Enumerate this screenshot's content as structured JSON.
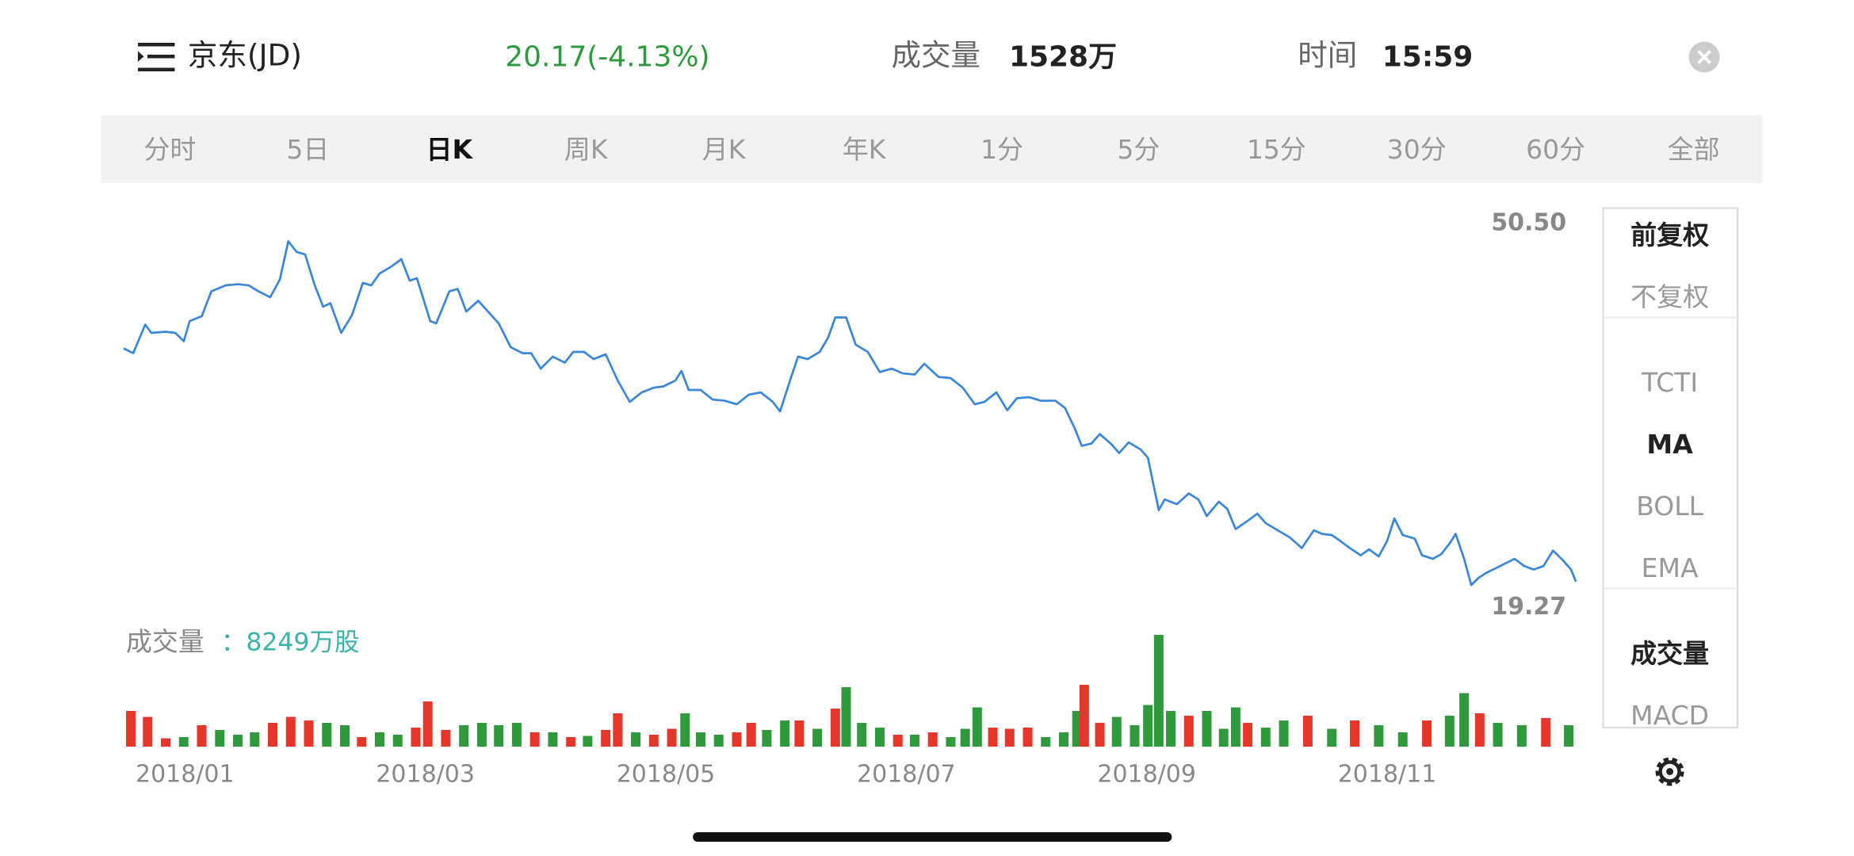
{
  "header": {
    "name": "京东(JD)",
    "price": "20.17(-4.13%)",
    "volume_label": "成交量",
    "volume": "1528万",
    "time_label": "时间",
    "time": "15:59"
  },
  "tabs": {
    "items": [
      "分时",
      "5日",
      "日K",
      "周K",
      "月K",
      "年K",
      "1分",
      "5分",
      "15分",
      "30分",
      "60分",
      "全部"
    ],
    "selected": 2
  },
  "side_panel": {
    "groups": [
      [
        "前复权",
        "不复权"
      ],
      [
        "TCTI",
        "MA",
        "BOLL",
        "EMA"
      ],
      [
        "成交量",
        "MACD"
      ]
    ],
    "selected": [
      "前复权",
      "MA",
      "成交量"
    ]
  },
  "chart_data": {
    "type": "line",
    "color": "#3a86d9",
    "x": [
      0.49,
      0.57,
      0.67,
      0.72,
      0.84,
      0.92,
      0.99,
      1.04,
      1.14,
      1.22,
      1.34,
      1.44,
      1.53,
      1.61,
      1.71,
      1.79,
      1.86,
      1.93,
      2.0,
      2.08,
      2.15,
      2.21,
      2.3,
      2.39,
      2.48,
      2.55,
      2.62,
      2.72,
      2.8,
      2.87,
      2.93,
      3.04,
      3.09,
      3.2,
      3.27,
      3.34,
      3.44,
      3.53,
      3.61,
      3.71,
      3.81,
      3.88,
      3.96,
      4.06,
      4.16,
      4.23,
      4.32,
      4.4,
      4.5,
      4.6,
      4.7,
      4.8,
      4.9,
      4.98,
      5.08,
      5.13,
      5.19,
      5.29,
      5.39,
      5.49,
      5.59,
      5.69,
      5.79,
      5.89,
      5.95,
      6.04,
      6.1,
      6.18,
      6.28,
      6.35,
      6.41,
      6.5,
      6.58,
      6.68,
      6.78,
      6.88,
      6.97,
      7.07,
      7.15,
      7.27,
      7.37,
      7.47,
      7.57,
      7.65,
      7.75,
      7.84,
      7.92,
      8.02,
      8.12,
      8.24,
      8.32,
      8.4,
      8.46,
      8.54,
      8.61,
      8.71,
      8.77,
      8.85,
      8.95,
      9.01,
      9.1,
      9.15,
      9.25,
      9.35,
      9.43,
      9.5,
      9.6,
      9.67,
      9.74,
      9.84,
      9.92,
      9.99,
      10.09,
      10.19,
      10.29,
      10.39,
      10.46,
      10.54,
      10.61,
      10.69,
      10.78,
      10.85,
      10.93,
      11.0,
      11.06,
      11.13,
      11.23,
      11.29,
      11.38,
      11.45,
      11.52,
      11.57,
      11.64,
      11.7,
      11.76,
      11.82,
      11.9,
      11.98,
      12.06,
      12.14,
      12.22,
      12.3,
      12.38,
      12.46,
      12.53,
      12.57
    ],
    "values": [
      40.4,
      39.98,
      42.46,
      41.74,
      41.84,
      41.74,
      41.02,
      42.77,
      43.18,
      45.35,
      45.86,
      45.96,
      45.86,
      45.35,
      44.83,
      46.38,
      49.68,
      48.75,
      48.54,
      45.86,
      44.01,
      44.31,
      41.74,
      43.28,
      46.07,
      45.86,
      46.89,
      47.51,
      48.13,
      46.27,
      46.48,
      42.77,
      42.56,
      45.35,
      45.55,
      43.59,
      44.52,
      43.49,
      42.56,
      40.5,
      39.98,
      39.98,
      38.64,
      39.68,
      39.16,
      40.09,
      40.09,
      39.47,
      39.88,
      37.61,
      35.76,
      36.58,
      36.99,
      37.1,
      37.61,
      38.44,
      36.79,
      36.79,
      35.96,
      35.86,
      35.55,
      36.38,
      36.58,
      35.76,
      34.93,
      37.82,
      39.68,
      39.47,
      40.09,
      41.32,
      43.08,
      43.08,
      40.71,
      40.09,
      38.34,
      38.64,
      38.23,
      38.13,
      39.06,
      37.92,
      37.82,
      36.99,
      35.55,
      35.76,
      36.58,
      35.04,
      36.07,
      36.17,
      35.86,
      35.86,
      35.24,
      33.49,
      31.94,
      32.15,
      32.97,
      32.05,
      31.32,
      32.25,
      31.63,
      30.91,
      26.38,
      27.3,
      26.89,
      27.82,
      27.3,
      25.86,
      27.1,
      26.48,
      24.73,
      25.45,
      26.07,
      25.24,
      24.62,
      24.01,
      23.08,
      24.62,
      24.31,
      24.21,
      23.7,
      23.08,
      22.46,
      22.97,
      22.36,
      23.7,
      25.65,
      24.21,
      23.9,
      22.46,
      22.15,
      22.56,
      23.49,
      24.31,
      22.15,
      19.88,
      20.5,
      20.91,
      21.32,
      21.74,
      22.15,
      21.53,
      21.22,
      21.53,
      22.87,
      22.05,
      21.22,
      20.17
    ],
    "xlim": [
      0.49,
      12.57
    ],
    "xticks": [
      {
        "value": 1,
        "label": "2018/01"
      },
      {
        "value": 3,
        "label": "2018/03"
      },
      {
        "value": 5,
        "label": "2018/05"
      },
      {
        "value": 7,
        "label": "2018/07"
      },
      {
        "value": 9,
        "label": "2018/09"
      },
      {
        "value": 11,
        "label": "2018/11"
      }
    ],
    "ylim": [
      19.27,
      50.5
    ],
    "yticks": [
      {
        "value": 50.5,
        "label": "50.50"
      },
      19.27
    ],
    "volume": {
      "label": "成交量",
      "value_label": "：8249万股",
      "ylim": [
        0,
        46000
      ],
      "up_color": "#e8352a",
      "down_color": "#2f9a3c",
      "x": [
        0.55,
        0.69,
        0.84,
        0.99,
        1.14,
        1.29,
        1.44,
        1.58,
        1.73,
        1.88,
        2.03,
        2.18,
        2.33,
        2.47,
        2.62,
        2.77,
        2.92,
        3.02,
        3.17,
        3.32,
        3.47,
        3.61,
        3.76,
        3.91,
        4.06,
        4.21,
        4.35,
        4.5,
        4.6,
        4.75,
        4.9,
        5.05,
        5.16,
        5.29,
        5.44,
        5.59,
        5.71,
        5.84,
        5.99,
        6.11,
        6.26,
        6.41,
        6.5,
        6.63,
        6.78,
        6.93,
        7.07,
        7.22,
        7.37,
        7.49,
        7.59,
        7.72,
        7.86,
        8.01,
        8.16,
        8.31,
        8.42,
        8.48,
        8.61,
        8.75,
        8.9,
        9.01,
        9.1,
        9.2,
        9.35,
        9.5,
        9.64,
        9.74,
        9.84,
        9.99,
        10.14,
        10.34,
        10.54,
        10.73,
        10.93,
        11.13,
        11.33,
        11.52,
        11.64,
        11.77,
        11.92,
        12.12,
        12.32,
        12.51
      ],
      "values": [
        13800,
        11500,
        3220,
        3680,
        8280,
        6440,
        4600,
        5520,
        9200,
        11500,
        10120,
        9200,
        8280,
        3680,
        5520,
        4600,
        7360,
        17480,
        6440,
        8280,
        9200,
        8280,
        9200,
        5520,
        5520,
        3680,
        4140,
        6440,
        12880,
        5520,
        4600,
        6900,
        12880,
        5520,
        4600,
        5520,
        9200,
        6440,
        10120,
        10120,
        6900,
        14720,
        23000,
        9200,
        7360,
        4600,
        4600,
        5520,
        3680,
        6900,
        15180,
        7360,
        6900,
        7360,
        3680,
        5520,
        13800,
        23920,
        9200,
        11500,
        8280,
        16100,
        43240,
        13800,
        11960,
        13800,
        6900,
        15180,
        9200,
        7360,
        10120,
        11960,
        6900,
        10120,
        8280,
        5520,
        10120,
        11960,
        20700,
        12880,
        9200,
        8280,
        11040,
        8280
      ],
      "up": [
        true,
        true,
        true,
        false,
        true,
        false,
        false,
        false,
        true,
        true,
        true,
        false,
        false,
        true,
        false,
        false,
        true,
        true,
        true,
        false,
        false,
        false,
        false,
        true,
        false,
        true,
        false,
        true,
        true,
        false,
        true,
        true,
        false,
        false,
        false,
        true,
        true,
        false,
        false,
        true,
        false,
        true,
        false,
        false,
        false,
        true,
        false,
        true,
        false,
        false,
        false,
        true,
        true,
        true,
        false,
        false,
        false,
        true,
        true,
        false,
        false,
        false,
        false,
        false,
        true,
        false,
        false,
        false,
        true,
        false,
        false,
        true,
        false,
        true,
        false,
        false,
        true,
        false,
        false,
        true,
        false,
        false,
        true,
        false
      ]
    }
  }
}
